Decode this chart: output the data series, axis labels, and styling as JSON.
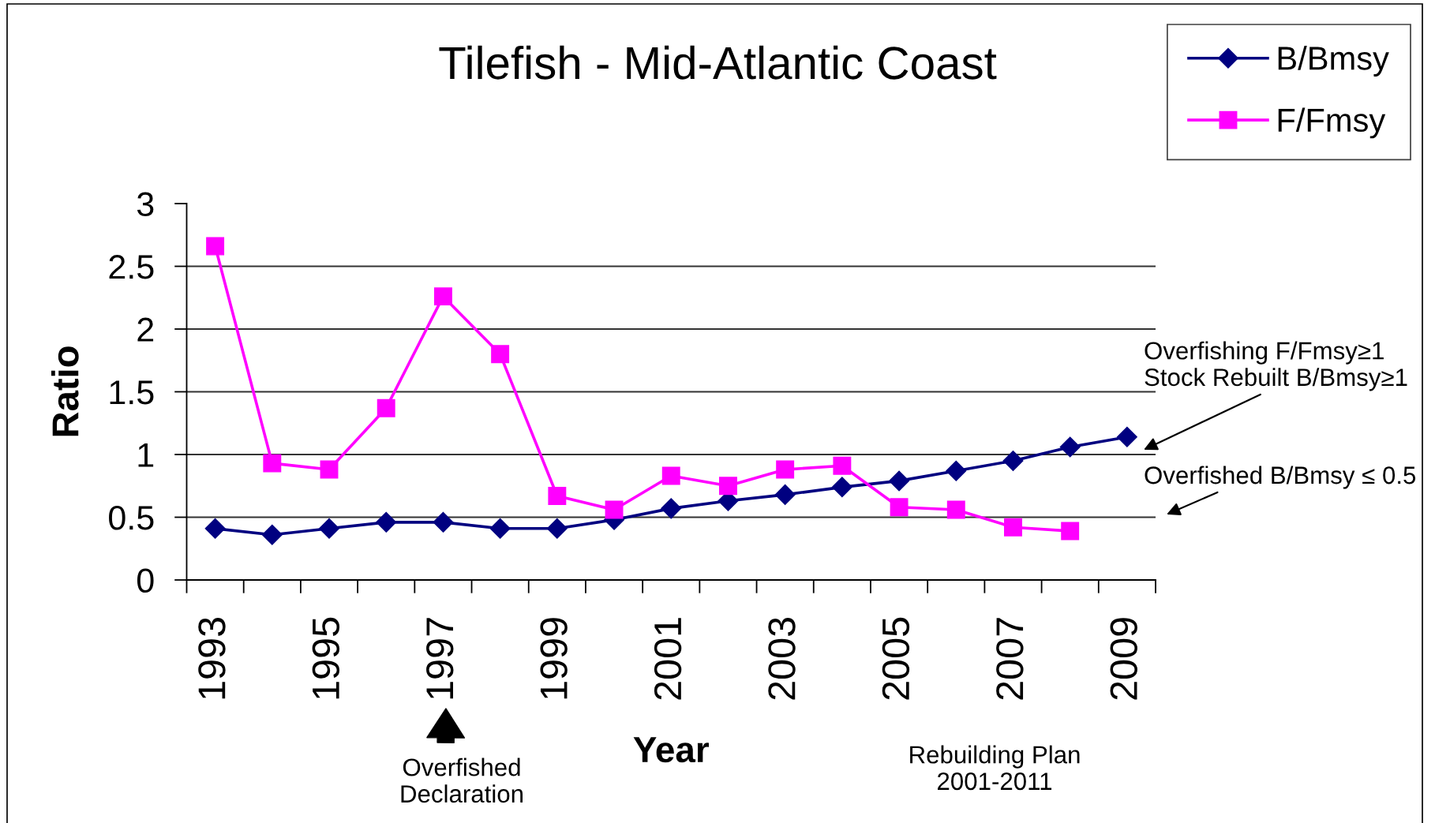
{
  "chart_data": {
    "type": "line",
    "title": "Tilefish - Mid-Atlantic Coast",
    "xlabel": "Year",
    "ylabel": "Ratio",
    "categories": [
      "1993",
      null,
      "1995",
      null,
      "1997",
      null,
      "1999",
      null,
      "2001",
      null,
      "2003",
      null,
      "2005",
      null,
      "2007",
      null,
      "2009"
    ],
    "series": [
      {
        "name": "B/Bmsy",
        "color": "#000080",
        "marker": "diamond",
        "values": [
          0.41,
          0.36,
          0.41,
          0.46,
          0.46,
          0.41,
          0.41,
          0.48,
          0.57,
          0.63,
          0.68,
          0.74,
          0.79,
          0.87,
          0.95,
          1.06,
          1.14
        ]
      },
      {
        "name": "F/Fmsy",
        "color": "#ff00ff",
        "marker": "square",
        "values": [
          2.66,
          0.93,
          0.88,
          1.37,
          2.26,
          1.8,
          0.67,
          0.56,
          0.83,
          0.75,
          0.88,
          0.91,
          0.58,
          0.56,
          0.42,
          0.39,
          null
        ]
      }
    ],
    "ylim": [
      0,
      3
    ],
    "yticks": [
      0,
      0.5,
      1,
      1.5,
      2,
      2.5,
      3
    ],
    "grid": "y",
    "legend": "top right",
    "line_style": "solid",
    "annotations": [
      "Overfishing F/Fmsy≥1\nStock Rebuilt B/Bmsy≥1",
      "Overfished B/Bmsy ≤ 0.5",
      "Overfished\nDeclaration",
      "Rebuilding Plan\n2001-2011"
    ]
  }
}
